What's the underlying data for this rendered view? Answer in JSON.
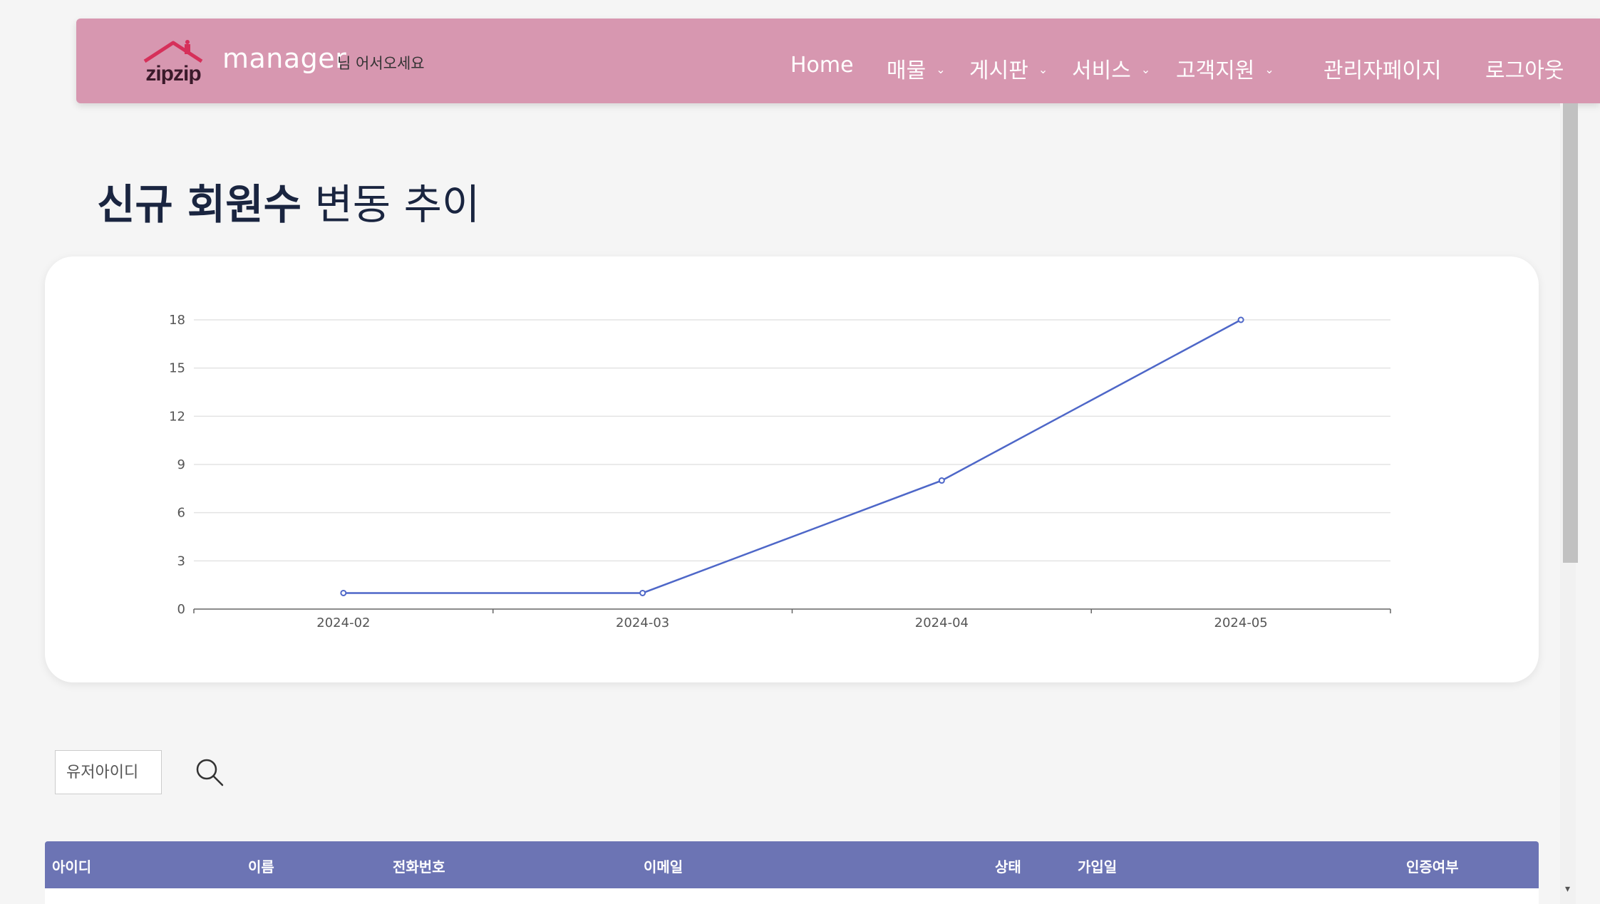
{
  "header": {
    "brand": "manager",
    "welcome": "님 어서오세요",
    "nav": [
      {
        "label": "Home",
        "has_dropdown": false
      },
      {
        "label": "매물",
        "has_dropdown": true
      },
      {
        "label": "게시판",
        "has_dropdown": true
      },
      {
        "label": "서비스",
        "has_dropdown": true
      },
      {
        "label": "고객지원",
        "has_dropdown": true
      },
      {
        "label": "관리자페이지",
        "has_dropdown": false
      },
      {
        "label": "로그아웃",
        "has_dropdown": false
      }
    ]
  },
  "title": {
    "bold": "신규 회원수",
    "light": "변동 추이"
  },
  "chart_data": {
    "type": "line",
    "categories": [
      "2024-02",
      "2024-03",
      "2024-04",
      "2024-05"
    ],
    "series": [
      {
        "values": [
          1,
          1,
          8,
          18
        ],
        "color": "#4e67c8"
      }
    ],
    "yticks": [
      0,
      3,
      6,
      9,
      12,
      15,
      18
    ],
    "ylim": [
      0,
      18
    ],
    "grid": true
  },
  "search": {
    "placeholder": "유저아이디",
    "icon": "search-icon"
  },
  "table": {
    "columns": [
      "아이디",
      "이름",
      "전화번호",
      "이메일",
      "상태",
      "가입일",
      "인증여부"
    ]
  },
  "colors": {
    "header_bg": "#d797b0",
    "table_header_bg": "#6c74b4",
    "line": "#4e67c8",
    "title": "#1a2540"
  }
}
